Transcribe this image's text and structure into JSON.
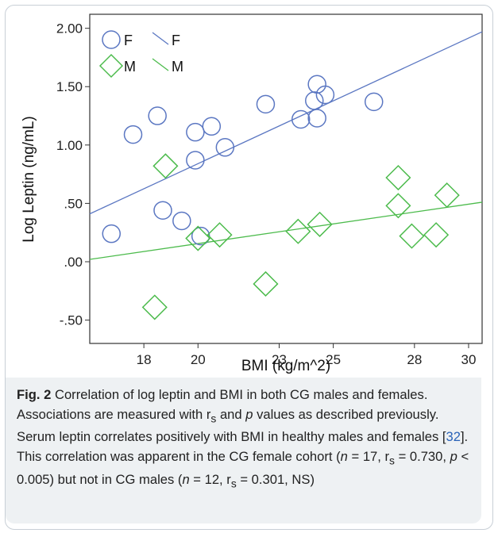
{
  "chart_data": {
    "type": "scatter",
    "title": "",
    "xlabel": "BMI (kg/m^2)",
    "ylabel": "Log Leptin (ng/mL)",
    "xlim": [
      16.0,
      30.5
    ],
    "ylim": [
      -0.7,
      2.12
    ],
    "x_ticks": [
      18,
      20,
      23,
      25,
      28,
      30
    ],
    "x_tick_labels": [
      "18",
      "20",
      "23",
      "25",
      "28",
      "30"
    ],
    "y_ticks": [
      2.0,
      1.5,
      1.0,
      0.5,
      0.0,
      -0.5
    ],
    "y_tick_labels": [
      "2.00",
      "1.50",
      "1.00",
      ".50",
      ".00",
      "-.50"
    ],
    "grid": false,
    "legend_position": "top-left",
    "series": [
      {
        "name": "F",
        "marker": "circle",
        "color": "#5b77c2",
        "points": [
          [
            16.8,
            0.24
          ],
          [
            17.6,
            1.09
          ],
          [
            18.5,
            1.25
          ],
          [
            18.7,
            0.44
          ],
          [
            19.4,
            0.35
          ],
          [
            19.9,
            0.87
          ],
          [
            19.9,
            1.11
          ],
          [
            20.1,
            0.22
          ],
          [
            20.5,
            1.16
          ],
          [
            21.0,
            0.98
          ],
          [
            22.5,
            1.35
          ],
          [
            23.8,
            1.22
          ],
          [
            24.3,
            1.38
          ],
          [
            24.4,
            1.52
          ],
          [
            24.4,
            1.23
          ],
          [
            24.7,
            1.43
          ],
          [
            26.5,
            1.37
          ]
        ]
      },
      {
        "name": "M",
        "marker": "diamond",
        "color": "#4cbb4c",
        "points": [
          [
            18.4,
            -0.39
          ],
          [
            18.8,
            0.82
          ],
          [
            20.0,
            0.2
          ],
          [
            20.8,
            0.23
          ],
          [
            22.5,
            -0.19
          ],
          [
            23.7,
            0.26
          ],
          [
            24.5,
            0.32
          ],
          [
            27.4,
            0.72
          ],
          [
            27.4,
            0.48
          ],
          [
            27.9,
            0.22
          ],
          [
            28.8,
            0.23
          ],
          [
            29.2,
            0.57
          ]
        ]
      }
    ],
    "fit_lines": [
      {
        "name": "F",
        "color": "#5b77c2",
        "x": [
          16.0,
          30.5
        ],
        "y": [
          0.41,
          1.97
        ]
      },
      {
        "name": "M",
        "color": "#4cbb4c",
        "x": [
          16.0,
          30.5
        ],
        "y": [
          0.02,
          0.51
        ]
      }
    ],
    "legend": [
      {
        "label": "F",
        "marker": "circle",
        "color": "#5b77c2"
      },
      {
        "label": "F",
        "marker": "line",
        "color": "#5b77c2"
      },
      {
        "label": "M",
        "marker": "diamond",
        "color": "#4cbb4c"
      },
      {
        "label": "M",
        "marker": "line",
        "color": "#4cbb4c"
      }
    ]
  },
  "caption": {
    "label": "Fig. 2",
    "text_1": " Correlation of log leptin and BMI in both CG males and females. Associations are measured with r",
    "sub_1": "s",
    "text_2": " and ",
    "p_1": "p",
    "text_3": " values as described previously. Serum leptin correlates positively with BMI in healthy males and females [",
    "ref": "32",
    "text_4": "]. This correlation was apparent in the CG female cohort (",
    "n_1": "n",
    "text_5": " = 17, r",
    "sub_2": "s",
    "text_6": " = 0.730, ",
    "p_2": "p",
    "text_7": " < 0.005) but not in CG males (",
    "n_2": "n",
    "text_8": " = 12, r",
    "sub_3": "s",
    "text_9": " = 0.301, NS)"
  }
}
